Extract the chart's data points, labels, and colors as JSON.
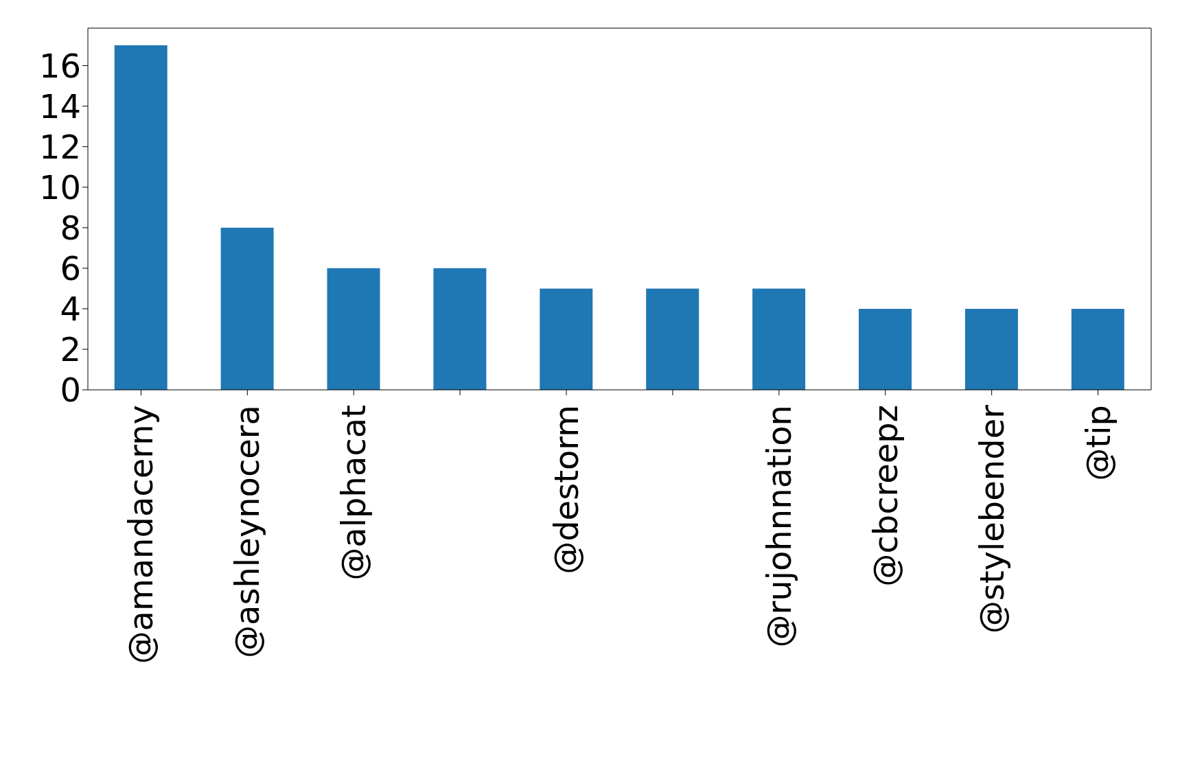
{
  "chart_data": {
    "type": "bar",
    "categories": [
      "@amandacerny",
      "@ashleynocera",
      "@alphacat",
      null,
      "@destorm",
      null,
      "@rujohnnation",
      "@cbcreepz",
      "@stylebender",
      "@tip"
    ],
    "values": [
      17,
      8,
      6,
      6,
      5,
      5,
      5,
      4,
      4,
      4
    ],
    "color": "#1f77b4",
    "ylim": [
      0,
      17.85
    ],
    "yticks": [
      0,
      2,
      4,
      6,
      8,
      10,
      12,
      14,
      16
    ],
    "grid": false
  }
}
